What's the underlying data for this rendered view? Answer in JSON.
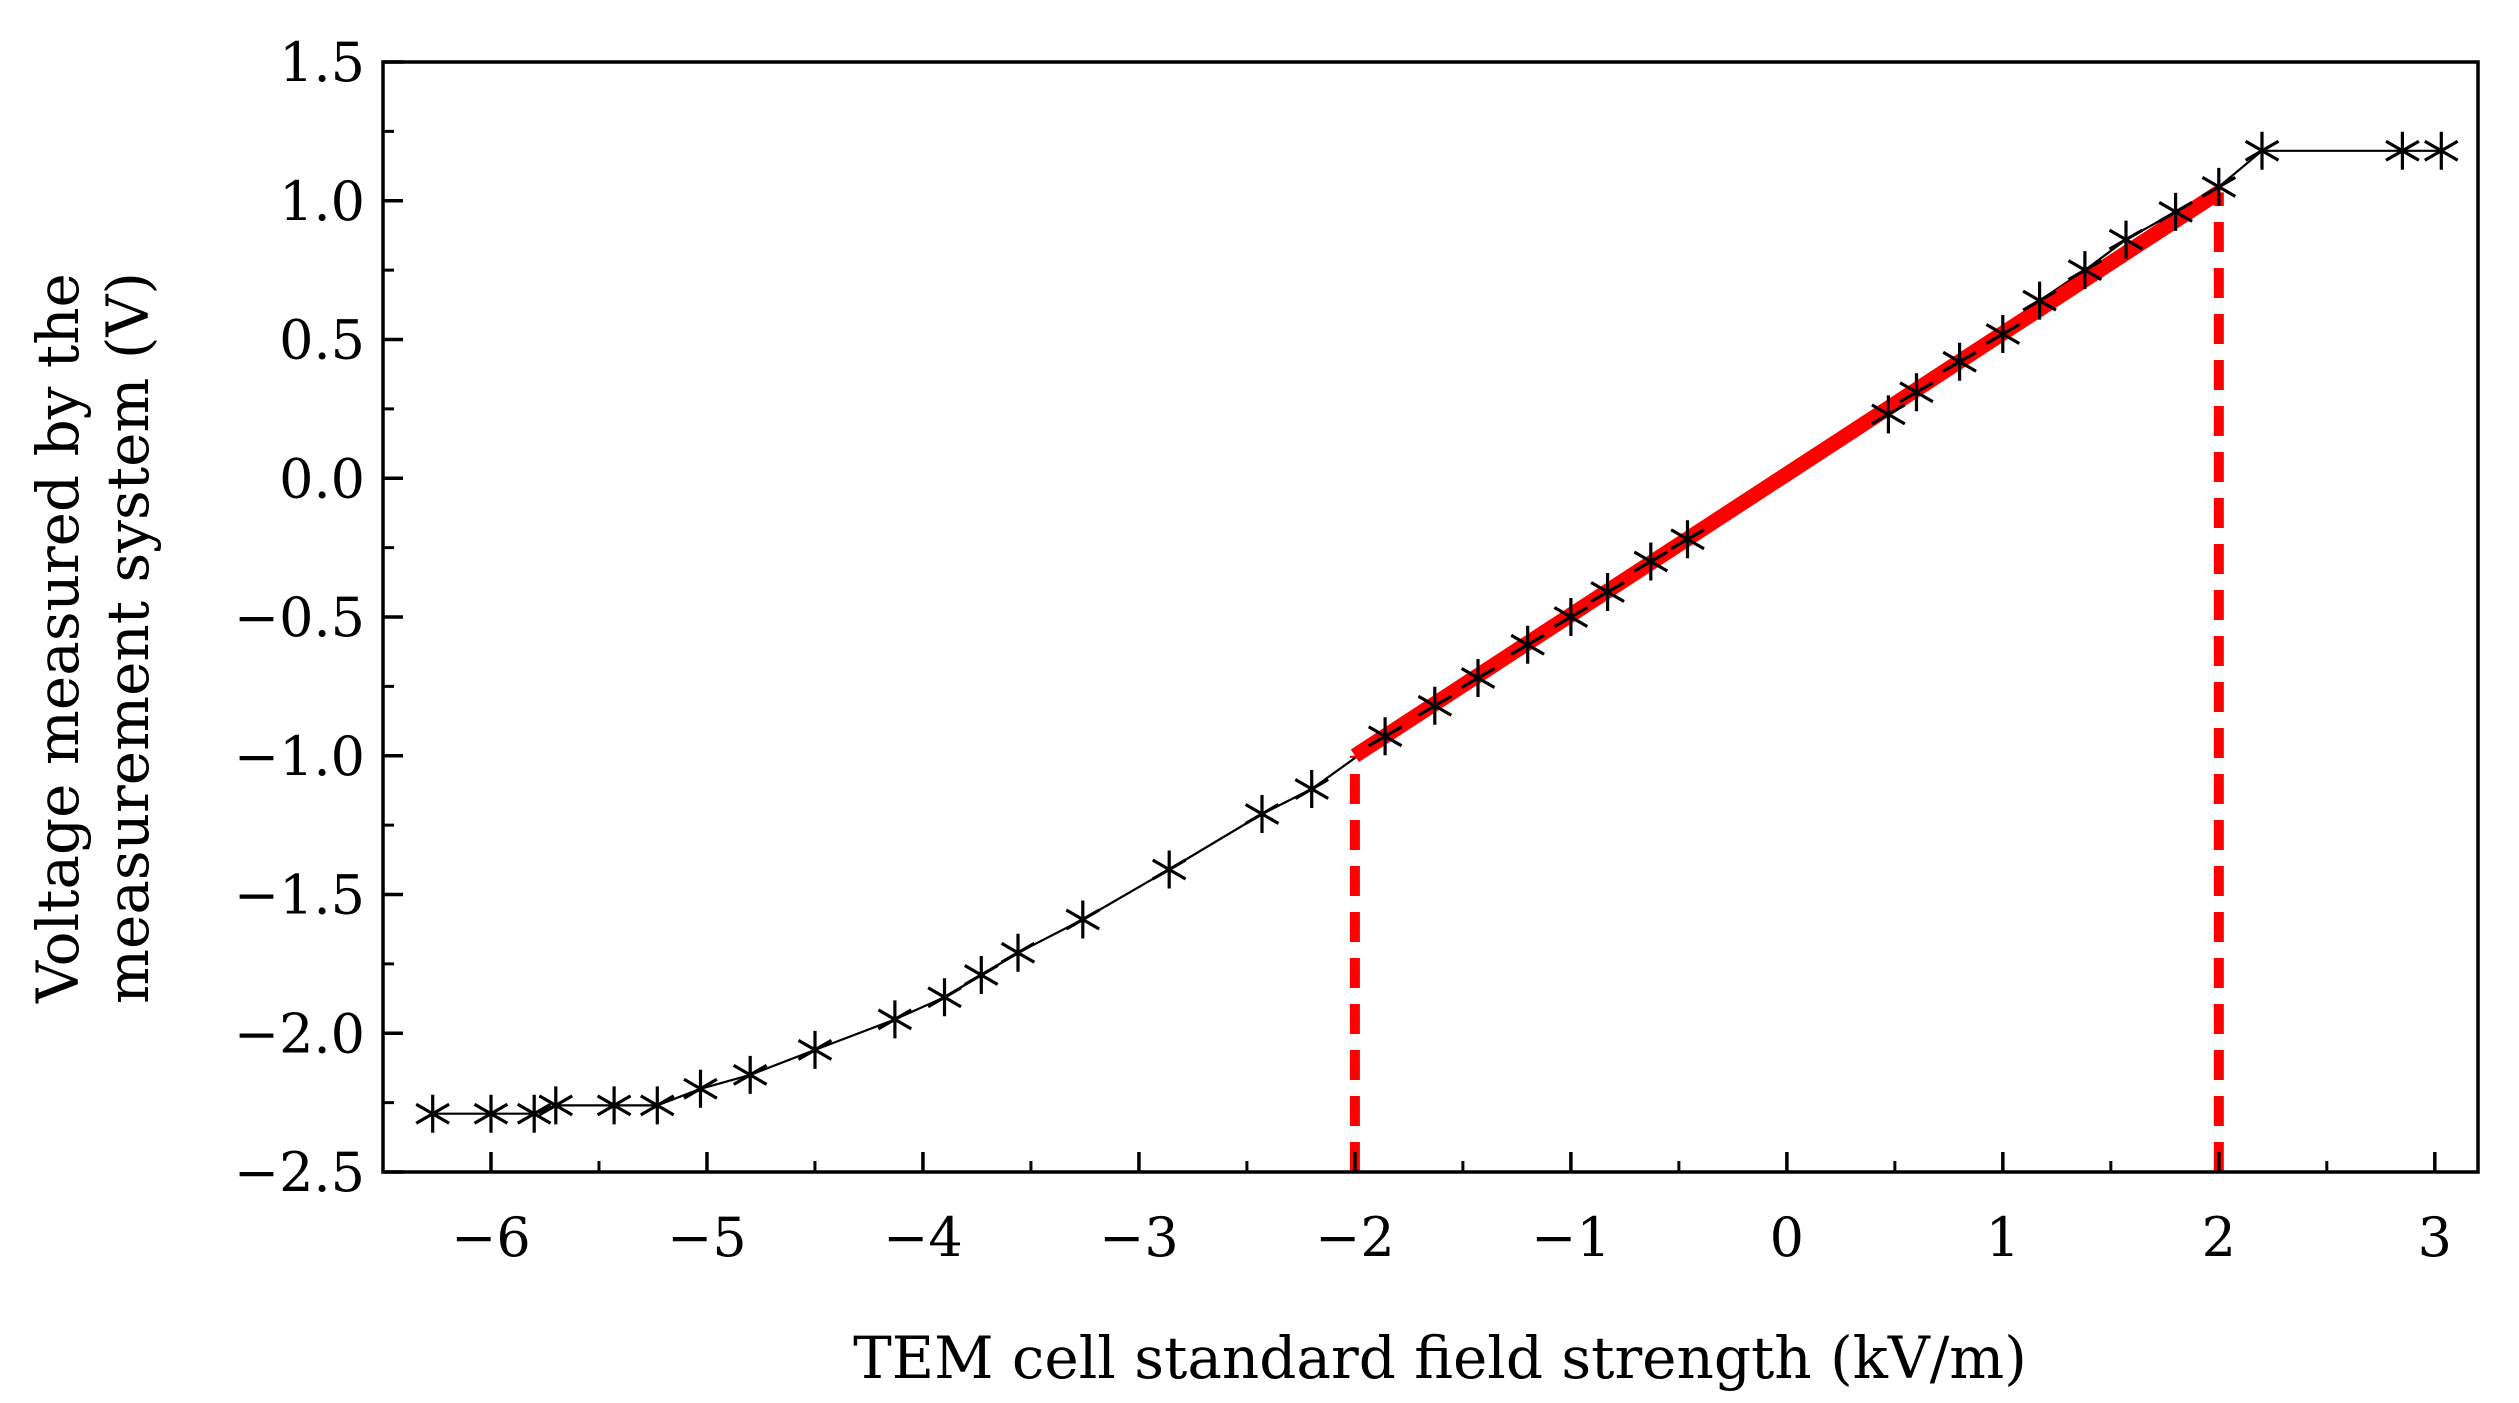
{
  "chart_data": {
    "type": "line",
    "title": "",
    "xlabel": "TEM cell standard field strength (kV/m)",
    "ylabel": [
      "Voltage measured by the",
      "measurement system (V)"
    ],
    "xlim": [
      -6.5,
      3.2
    ],
    "ylim": [
      -2.5,
      1.5
    ],
    "xticks": [
      -6,
      -5,
      -4,
      -3,
      -2,
      -1,
      0,
      1,
      2,
      3
    ],
    "yticks": [
      -2.5,
      -2.0,
      -1.5,
      -1.0,
      -0.5,
      0.0,
      0.5,
      1.0,
      1.5
    ],
    "xtick_labels": [
      "−6",
      "−5",
      "−4",
      "−3",
      "−2",
      "−1",
      "0",
      "1",
      "2",
      "3"
    ],
    "ytick_labels": [
      "−2.5",
      "−2.0",
      "−1.5",
      "−1.0",
      "−0.5",
      "0.0",
      "0.5",
      "1.0",
      "1.5"
    ],
    "grid": false,
    "series": [
      {
        "marker": "asterisk",
        "color": "#000000",
        "x": [
          -6.27,
          -6.0,
          -5.8,
          -5.7,
          -5.43,
          -5.23,
          -5.03,
          -4.8,
          -4.5,
          -4.13,
          -3.9,
          -3.73,
          -3.56,
          -3.26,
          -2.86,
          -2.43,
          -2.2,
          -1.86,
          -1.63,
          -1.43,
          -1.2,
          -1.0,
          -0.83,
          -0.63,
          -0.46,
          0.47,
          0.6,
          0.8,
          1.0,
          1.17,
          1.38,
          1.57,
          1.8,
          2.0,
          2.2,
          2.85,
          3.03
        ],
        "y": [
          -2.29,
          -2.29,
          -2.29,
          -2.26,
          -2.26,
          -2.26,
          -2.2,
          -2.15,
          -2.06,
          -1.95,
          -1.87,
          -1.79,
          -1.71,
          -1.59,
          -1.41,
          -1.21,
          -1.12,
          -0.93,
          -0.82,
          -0.72,
          -0.6,
          -0.5,
          -0.41,
          -0.3,
          -0.22,
          0.23,
          0.31,
          0.42,
          0.52,
          0.64,
          0.75,
          0.86,
          0.96,
          1.05,
          1.18,
          1.18,
          1.18
        ]
      }
    ],
    "linear_fit": {
      "x": [
        -2.0,
        2.0
      ],
      "y": [
        -1.0,
        1.03
      ],
      "color": "#ff0000"
    },
    "vertical_markers": {
      "x": [
        -2.0,
        2.0
      ],
      "y_from": -2.5,
      "y_to": [
        -1.0,
        1.03
      ],
      "color": "#ff0000",
      "style": "dashed"
    }
  }
}
